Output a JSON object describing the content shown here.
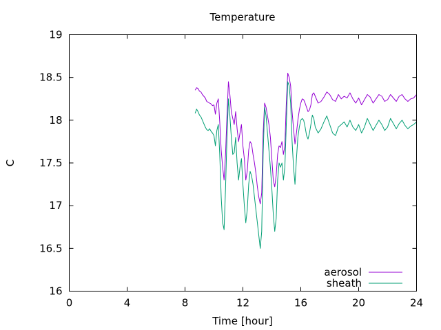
{
  "chart_data": {
    "type": "line",
    "title": "Temperature",
    "xlabel": "Time [hour]",
    "ylabel": "C",
    "xlim": [
      0,
      24
    ],
    "ylim": [
      16,
      19
    ],
    "xticks": [
      0,
      4,
      8,
      12,
      16,
      20,
      24
    ],
    "yticks": [
      16,
      16.5,
      17,
      17.5,
      18,
      18.5,
      19
    ],
    "ytick_labels": [
      "16",
      "16.5",
      "17",
      "17.5",
      "18",
      "18.5",
      "19"
    ],
    "grid": false,
    "legend_position": "bottom-right",
    "series": [
      {
        "name": "aerosol",
        "color": "#9400d3",
        "x": [
          8.7,
          8.8,
          8.9,
          9.0,
          9.1,
          9.2,
          9.3,
          9.4,
          9.5,
          9.6,
          9.7,
          9.8,
          9.9,
          10.0,
          10.1,
          10.2,
          10.3,
          10.4,
          10.5,
          10.6,
          10.7,
          10.8,
          10.9,
          11.0,
          11.1,
          11.2,
          11.3,
          11.4,
          11.5,
          11.6,
          11.7,
          11.8,
          11.9,
          12.0,
          12.1,
          12.2,
          12.3,
          12.4,
          12.5,
          12.6,
          12.7,
          12.8,
          12.9,
          13.0,
          13.1,
          13.2,
          13.3,
          13.4,
          13.5,
          13.6,
          13.7,
          13.8,
          13.9,
          14.0,
          14.1,
          14.2,
          14.3,
          14.4,
          14.5,
          14.6,
          14.7,
          14.8,
          14.9,
          15.0,
          15.1,
          15.2,
          15.3,
          15.4,
          15.5,
          15.6,
          15.7,
          15.8,
          15.9,
          16.0,
          16.1,
          16.2,
          16.3,
          16.4,
          16.5,
          16.6,
          16.7,
          16.8,
          16.9,
          17.0,
          17.2,
          17.4,
          17.6,
          17.8,
          18.0,
          18.2,
          18.4,
          18.6,
          18.8,
          19.0,
          19.2,
          19.4,
          19.6,
          19.8,
          20.0,
          20.2,
          20.4,
          20.6,
          20.8,
          21.0,
          21.2,
          21.4,
          21.6,
          21.8,
          22.0,
          22.2,
          22.4,
          22.6,
          22.8,
          23.0,
          23.2,
          23.4,
          23.6,
          23.8,
          24.0
        ],
        "y": [
          18.35,
          18.38,
          18.37,
          18.34,
          18.33,
          18.3,
          18.28,
          18.26,
          18.22,
          18.21,
          18.2,
          18.19,
          18.17,
          18.18,
          18.07,
          18.2,
          18.25,
          17.98,
          17.65,
          17.45,
          17.3,
          17.6,
          18.05,
          18.45,
          18.3,
          18.1,
          18.02,
          17.95,
          18.1,
          17.9,
          17.75,
          17.85,
          17.95,
          17.7,
          17.55,
          17.3,
          17.4,
          17.65,
          17.75,
          17.72,
          17.6,
          17.5,
          17.38,
          17.22,
          17.1,
          17.02,
          17.15,
          17.85,
          18.2,
          18.15,
          18.05,
          17.95,
          17.8,
          17.55,
          17.3,
          17.22,
          17.35,
          17.6,
          17.7,
          17.68,
          17.75,
          17.6,
          17.7,
          18.2,
          18.55,
          18.5,
          18.4,
          18.1,
          17.9,
          17.72,
          17.85,
          18.0,
          18.12,
          18.2,
          18.25,
          18.24,
          18.2,
          18.15,
          18.1,
          18.12,
          18.18,
          18.3,
          18.32,
          18.28,
          18.2,
          18.22,
          18.27,
          18.33,
          18.3,
          18.24,
          18.22,
          18.3,
          18.25,
          18.28,
          18.26,
          18.32,
          18.25,
          18.2,
          18.26,
          18.18,
          18.24,
          18.3,
          18.27,
          18.2,
          18.25,
          18.3,
          18.28,
          18.22,
          18.24,
          18.3,
          18.26,
          18.22,
          18.28,
          18.3,
          18.25,
          18.22,
          18.25,
          18.26,
          18.3
        ]
      },
      {
        "name": "sheath",
        "color": "#009e73",
        "x": [
          8.7,
          8.8,
          8.9,
          9.0,
          9.1,
          9.2,
          9.3,
          9.4,
          9.5,
          9.6,
          9.7,
          9.8,
          9.9,
          10.0,
          10.1,
          10.2,
          10.3,
          10.4,
          10.5,
          10.6,
          10.7,
          10.8,
          10.9,
          11.0,
          11.1,
          11.2,
          11.3,
          11.4,
          11.5,
          11.6,
          11.7,
          11.8,
          11.9,
          12.0,
          12.1,
          12.2,
          12.3,
          12.4,
          12.5,
          12.6,
          12.7,
          12.8,
          12.9,
          13.0,
          13.1,
          13.2,
          13.3,
          13.4,
          13.5,
          13.6,
          13.7,
          13.8,
          13.9,
          14.0,
          14.1,
          14.2,
          14.3,
          14.4,
          14.5,
          14.6,
          14.7,
          14.8,
          14.9,
          15.0,
          15.1,
          15.2,
          15.3,
          15.4,
          15.5,
          15.6,
          15.7,
          15.8,
          15.9,
          16.0,
          16.1,
          16.2,
          16.3,
          16.4,
          16.5,
          16.6,
          16.7,
          16.8,
          16.9,
          17.0,
          17.2,
          17.4,
          17.6,
          17.8,
          18.0,
          18.2,
          18.4,
          18.6,
          18.8,
          19.0,
          19.2,
          19.4,
          19.6,
          19.8,
          20.0,
          20.2,
          20.4,
          20.6,
          20.8,
          21.0,
          21.2,
          21.4,
          21.6,
          21.8,
          22.0,
          22.2,
          22.4,
          22.6,
          22.8,
          23.0,
          23.2,
          23.4,
          23.6,
          23.8,
          24.0
        ],
        "y": [
          18.08,
          18.13,
          18.1,
          18.06,
          18.04,
          18.0,
          17.96,
          17.92,
          17.89,
          17.88,
          17.9,
          17.87,
          17.85,
          17.82,
          17.7,
          17.88,
          17.95,
          17.6,
          17.1,
          16.8,
          16.72,
          17.2,
          17.8,
          18.25,
          18.05,
          17.8,
          17.6,
          17.62,
          17.8,
          17.5,
          17.3,
          17.45,
          17.55,
          17.25,
          17.0,
          16.8,
          16.95,
          17.25,
          17.4,
          17.35,
          17.25,
          17.1,
          16.95,
          16.8,
          16.65,
          16.5,
          16.7,
          17.6,
          18.15,
          18.05,
          17.85,
          17.65,
          17.45,
          17.2,
          16.9,
          16.7,
          16.85,
          17.3,
          17.5,
          17.45,
          17.5,
          17.3,
          17.45,
          17.95,
          18.45,
          18.4,
          18.2,
          17.75,
          17.45,
          17.25,
          17.55,
          17.8,
          17.92,
          18.0,
          18.02,
          18.0,
          17.92,
          17.82,
          17.78,
          17.85,
          17.95,
          18.06,
          18.02,
          17.92,
          17.85,
          17.9,
          17.98,
          18.05,
          17.95,
          17.85,
          17.82,
          17.92,
          17.95,
          17.98,
          17.92,
          18.0,
          17.92,
          17.88,
          17.95,
          17.85,
          17.92,
          18.02,
          17.95,
          17.88,
          17.94,
          18.0,
          17.95,
          17.88,
          17.92,
          18.02,
          17.96,
          17.9,
          17.96,
          18.0,
          17.94,
          17.9,
          17.93,
          17.95,
          17.98
        ]
      }
    ]
  }
}
